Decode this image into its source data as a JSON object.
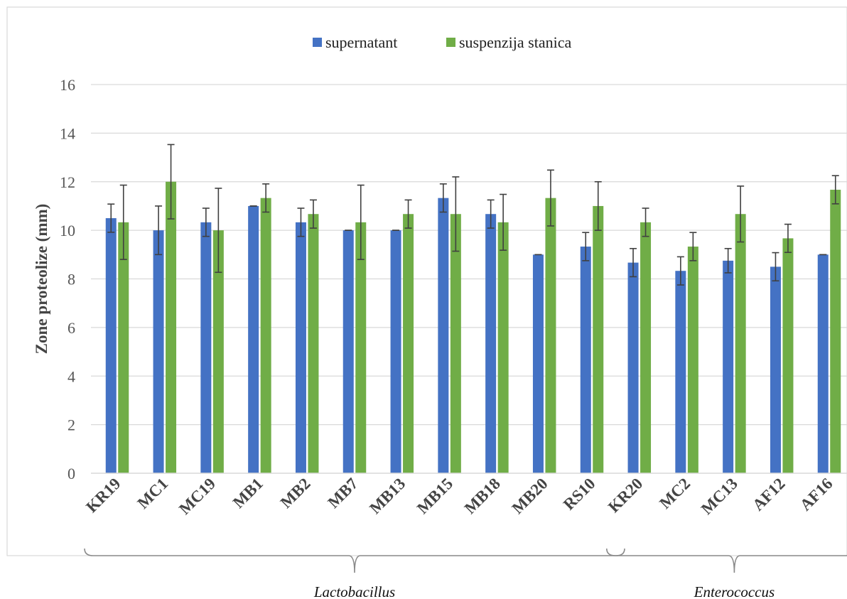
{
  "chart_data": {
    "type": "bar",
    "ylabel": "Zone proteolize (mm)",
    "ylim": [
      0,
      16
    ],
    "yticks": [
      0,
      2,
      4,
      6,
      8,
      10,
      12,
      14,
      16
    ],
    "grid": true,
    "legend_position": "top",
    "categories": [
      "KR19",
      "MC1",
      "MC19",
      "MB1",
      "MB2",
      "MB7",
      "MB13",
      "MB15",
      "MB18",
      "MB20",
      "RS10",
      "KR20",
      "MC2",
      "MC13",
      "AF12",
      "AF16"
    ],
    "series": [
      {
        "name": "supernatant",
        "color": "#4472c4",
        "values": [
          10.5,
          10.0,
          10.33,
          11.0,
          10.33,
          10.0,
          10.0,
          11.33,
          10.67,
          9.0,
          9.33,
          8.67,
          8.33,
          8.75,
          8.5,
          9.0
        ],
        "errors": [
          0.58,
          1.0,
          0.58,
          0.0,
          0.58,
          0.0,
          0.0,
          0.58,
          0.58,
          0.0,
          0.58,
          0.58,
          0.58,
          0.5,
          0.58,
          0.0
        ]
      },
      {
        "name": "suspenzija stanica",
        "color": "#70ad47",
        "values": [
          10.33,
          12.0,
          10.0,
          11.33,
          10.67,
          10.33,
          10.67,
          10.67,
          10.33,
          11.33,
          11.0,
          10.33,
          9.33,
          10.67,
          9.67,
          11.67
        ],
        "errors": [
          1.53,
          1.53,
          1.73,
          0.58,
          0.58,
          1.53,
          0.58,
          1.53,
          1.15,
          1.15,
          1.0,
          0.58,
          0.58,
          1.15,
          0.58,
          0.58
        ]
      }
    ],
    "groups": [
      {
        "name": "Lactobacillus",
        "from": 0,
        "to": 10
      },
      {
        "name": "Enterococcus",
        "from": 11,
        "to": 15
      }
    ]
  }
}
